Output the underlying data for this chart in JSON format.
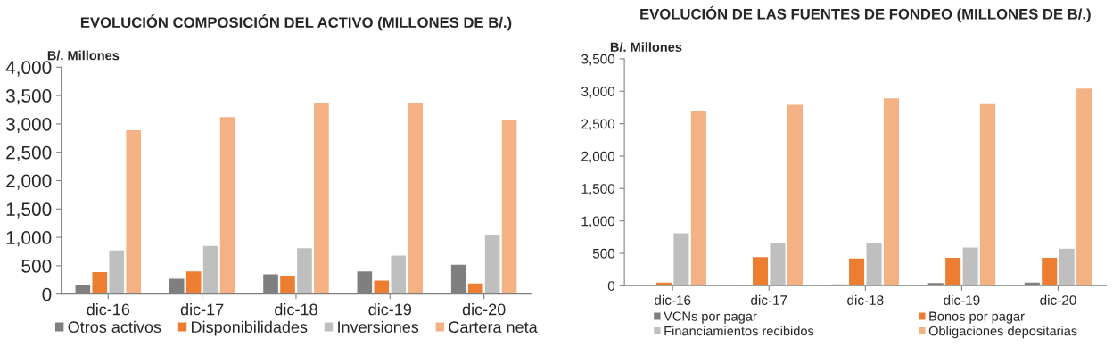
{
  "chart_data": [
    {
      "type": "bar",
      "title": "EVOLUCIÓN COMPOSICIÓN DEL ACTIVO (MILLONES DE B/.)",
      "ylabel": "B/. Millones",
      "categories": [
        "dic-16",
        "dic-17",
        "dic-18",
        "dic-19",
        "dic-20"
      ],
      "series": [
        {
          "name": "Otros activos",
          "color": "#7f7f7f",
          "values": [
            180,
            280,
            360,
            410,
            530
          ]
        },
        {
          "name": "Disponibilidades",
          "color": "#ed7d31",
          "values": [
            400,
            410,
            320,
            250,
            200
          ]
        },
        {
          "name": "Inversiones",
          "color": "#bfbfbf",
          "values": [
            780,
            860,
            820,
            690,
            1060
          ]
        },
        {
          "name": "Cartera neta",
          "color": "#f4b183",
          "values": [
            2900,
            3130,
            3380,
            3380,
            3080
          ]
        }
      ],
      "ylim": [
        0,
        4000
      ],
      "yticks": [
        0,
        {
          "value": 500,
          "label": "500"
        },
        {
          "value": 1000,
          "label": "1,000"
        },
        {
          "value": 1500,
          "label": "1,500"
        },
        {
          "value": 2000,
          "label": "2,000"
        },
        {
          "value": 2500,
          "label": "2,500"
        },
        {
          "value": 3000,
          "label": "3,000"
        },
        {
          "value": 3500,
          "label": "3,500"
        },
        {
          "value": 4000,
          "label": "4,000"
        }
      ],
      "grid": false,
      "legend": "bottom"
    },
    {
      "type": "bar",
      "title": "EVOLUCIÓN DE LAS FUENTES DE FONDEO (MILLONES DE B/.)",
      "ylabel": "B/. Millones",
      "categories": [
        "dic-16",
        "dic-17",
        "dic-18",
        "dic-19",
        "dic-20"
      ],
      "series": [
        {
          "name": "VCNs por pagar",
          "color": "#7f7f7f",
          "values": [
            null,
            10,
            30,
            50,
            60
          ]
        },
        {
          "name": "Bonos por pagar",
          "color": "#ed7d31",
          "values": [
            60,
            450,
            430,
            440,
            440
          ]
        },
        {
          "name": "Financiamientos recibidos",
          "color": "#bfbfbf",
          "values": [
            820,
            670,
            670,
            600,
            580
          ]
        },
        {
          "name": "Obligaciones depositarias",
          "color": "#f4b183",
          "values": [
            2710,
            2800,
            2900,
            2810,
            3050
          ]
        }
      ],
      "ylim": [
        0,
        3500
      ],
      "yticks": [
        0,
        {
          "value": 500,
          "label": "500"
        },
        {
          "value": 1000,
          "label": "1,000"
        },
        {
          "value": 1500,
          "label": "1,500"
        },
        {
          "value": 2000,
          "label": "2,000"
        },
        {
          "value": 2500,
          "label": "2,500"
        },
        {
          "value": 3000,
          "label": "3,000"
        },
        {
          "value": 3500,
          "label": "3,500"
        }
      ],
      "grid": false,
      "legend": "bottom"
    }
  ]
}
